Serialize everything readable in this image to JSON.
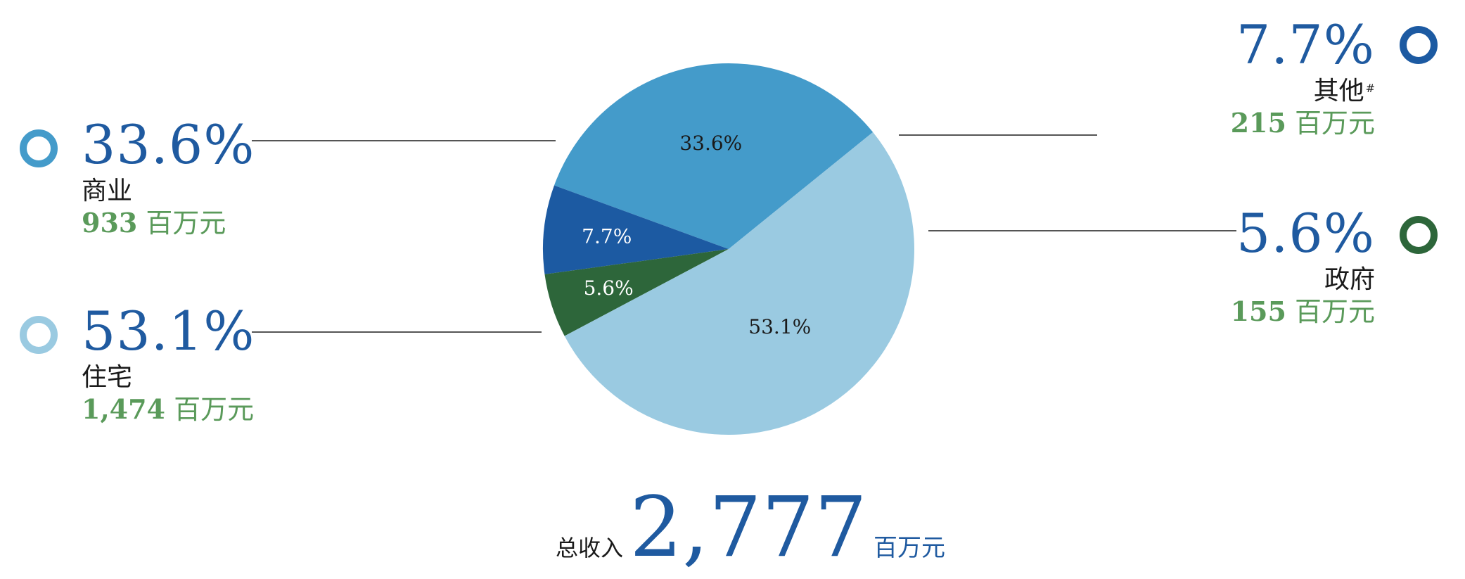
{
  "chart_data": {
    "type": "pie",
    "title": "",
    "slices": [
      {
        "key": "commercial",
        "label": "商业",
        "percent_label": "33.6%",
        "value": 933,
        "amount_label": "933",
        "color": "#449bca",
        "marker_color": "#449bca",
        "inner_text_color": "#1a1a1a"
      },
      {
        "key": "other",
        "label": "其他",
        "label_mark": "#",
        "percent_label": "7.7%",
        "value": 215,
        "amount_label": "215",
        "color": "#1c5aa2",
        "marker_color": "#1c5aa2",
        "inner_text_color": "#ffffff"
      },
      {
        "key": "government",
        "label": "政府",
        "percent_label": "5.6%",
        "value": 155,
        "amount_label": "155",
        "color": "#2d663a",
        "marker_color": "#2d663a",
        "inner_text_color": "#ffffff"
      },
      {
        "key": "residential",
        "label": "住宅",
        "percent_label": "53.1%",
        "value": 1474,
        "amount_label": "1,474",
        "color": "#9acae1",
        "marker_color": "#9acae1",
        "inner_text_color": "#1a1a1a"
      }
    ],
    "unit": "百万元",
    "total": {
      "label": "总收入",
      "value": 2777,
      "value_label": "2,777",
      "unit": "百万元"
    }
  },
  "colors": {
    "accent_blue": "#1f5aa0",
    "amount_green": "#5a9a5a",
    "leader_line": "#555555"
  }
}
